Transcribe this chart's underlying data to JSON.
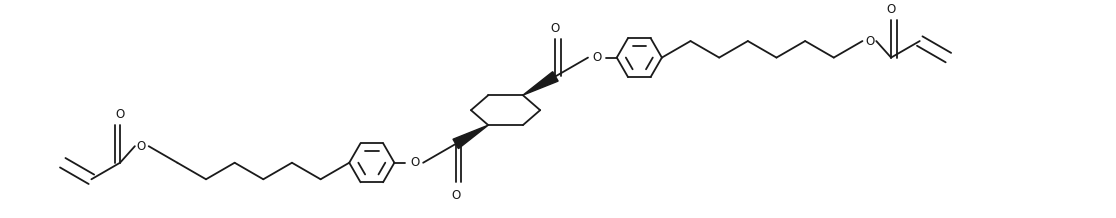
{
  "background_color": "#ffffff",
  "line_color": "#1a1a1a",
  "line_width": 1.3,
  "fig_width": 11.16,
  "fig_height": 2.18,
  "dpi": 100,
  "xlim": [
    0,
    11.16
  ],
  "ylim": [
    0,
    2.18
  ]
}
